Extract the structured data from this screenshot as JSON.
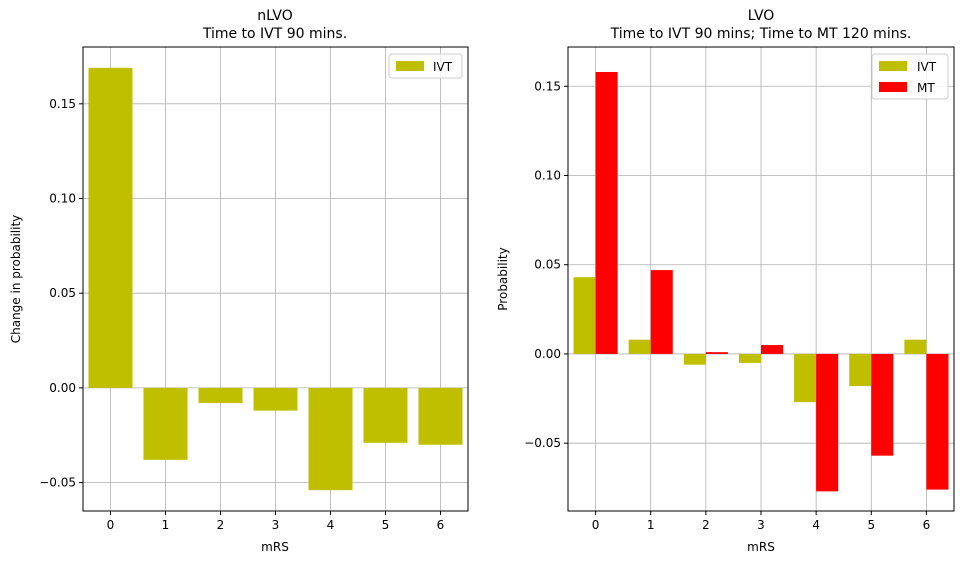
{
  "chart_data": [
    {
      "type": "bar",
      "title": "nLVO",
      "subtitle": "Time to IVT 90 mins.",
      "xlabel": "mRS",
      "ylabel": "Change in probability",
      "categories": [
        "0",
        "1",
        "2",
        "3",
        "4",
        "5",
        "6"
      ],
      "series": [
        {
          "name": "IVT",
          "color": "#bfbf00",
          "values": [
            0.169,
            -0.038,
            -0.008,
            -0.012,
            -0.054,
            -0.029,
            -0.03
          ]
        }
      ],
      "ylim": [
        -0.065,
        0.18
      ],
      "yticks": [
        -0.05,
        0.0,
        0.05,
        0.1,
        0.15
      ],
      "ytick_labels": [
        "−0.05",
        "0.00",
        "0.05",
        "0.10",
        "0.15"
      ],
      "grid": true,
      "legend": "top-right"
    },
    {
      "type": "bar",
      "title": "LVO",
      "subtitle": "Time to IVT 90 mins; Time to MT 120 mins.",
      "xlabel": "mRS",
      "ylabel": "Probability",
      "categories": [
        "0",
        "1",
        "2",
        "3",
        "4",
        "5",
        "6"
      ],
      "series": [
        {
          "name": "IVT",
          "color": "#bfbf00",
          "values": [
            0.043,
            0.008,
            -0.006,
            -0.005,
            -0.027,
            -0.018,
            0.008
          ]
        },
        {
          "name": "MT",
          "color": "#ff0000",
          "values": [
            0.158,
            0.047,
            0.001,
            0.005,
            -0.077,
            -0.057,
            -0.076
          ]
        }
      ],
      "ylim": [
        -0.088,
        0.172
      ],
      "yticks": [
        -0.05,
        0.0,
        0.05,
        0.1,
        0.15
      ],
      "ytick_labels": [
        "−0.05",
        "0.00",
        "0.05",
        "0.10",
        "0.15"
      ],
      "grid": true,
      "legend": "top-right"
    }
  ]
}
